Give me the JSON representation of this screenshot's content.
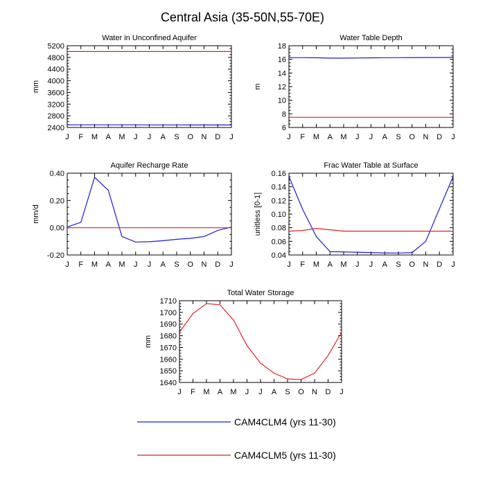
{
  "title": "Central Asia (35-50N,55-70E)",
  "colors": {
    "blue": "#1a1ad6",
    "red": "#e02020"
  },
  "legend": {
    "entries": [
      {
        "label": "CAM4CLM4 (yrs 11-30)",
        "color": "#1a1ad6"
      },
      {
        "label": "CAM4CLM5 (yrs 11-30)",
        "color": "#e02020"
      }
    ]
  },
  "chart_data": [
    {
      "type": "line",
      "title": "Water in Unconfined Aquifer",
      "ylabel": "mm",
      "ylim": [
        2400,
        5200
      ],
      "yticks": [
        2400,
        2800,
        3200,
        3600,
        4000,
        4400,
        4800,
        5200
      ],
      "ytick_labels": [
        "2400",
        "2800",
        "3200",
        "3600",
        "4000",
        "4400",
        "4800",
        "5200"
      ],
      "x": [
        "J",
        "F",
        "M",
        "A",
        "M",
        "J",
        "J",
        "A",
        "S",
        "O",
        "N",
        "D",
        "J"
      ],
      "series": [
        {
          "name": "CAM4CLM4 (yrs 11-30)",
          "color": "#1a1ad6",
          "values": [
            2490,
            2490,
            2490,
            2490,
            2490,
            2490,
            2488,
            2488,
            2488,
            2486,
            2486,
            2486,
            2486
          ]
        },
        {
          "name": "CAM4CLM5 (yrs 11-30)",
          "color": "#e02020",
          "values": [
            5000,
            5000,
            5000,
            5000,
            5000,
            5000,
            5000,
            5000,
            5000,
            5000,
            5000,
            5000,
            5000
          ]
        }
      ]
    },
    {
      "type": "line",
      "title": "Water Table Depth",
      "ylabel": "m",
      "ylim": [
        6,
        18
      ],
      "yticks": [
        6,
        8,
        10,
        12,
        14,
        16,
        18
      ],
      "ytick_labels": [
        "6",
        "8",
        "10",
        "12",
        "14",
        "16",
        "18"
      ],
      "x": [
        "J",
        "F",
        "M",
        "A",
        "M",
        "J",
        "J",
        "A",
        "S",
        "O",
        "N",
        "D",
        "J"
      ],
      "series": [
        {
          "name": "CAM4CLM4 (yrs 11-30)",
          "color": "#1a1ad6",
          "values": [
            16.25,
            16.25,
            16.23,
            16.18,
            16.18,
            16.2,
            16.22,
            16.24,
            16.25,
            16.26,
            16.27,
            16.27,
            16.28
          ]
        },
        {
          "name": "CAM4CLM5 (yrs 11-30)",
          "color": "#e02020",
          "values": [
            7.5,
            7.5,
            7.5,
            7.5,
            7.5,
            7.5,
            7.5,
            7.5,
            7.5,
            7.5,
            7.5,
            7.5,
            7.5
          ]
        }
      ]
    },
    {
      "type": "line",
      "title": "Aquifer Recharge Rate",
      "ylabel": "mm/d",
      "ylim": [
        -0.2,
        0.4
      ],
      "yticks": [
        -0.2,
        0.0,
        0.2,
        0.4
      ],
      "ytick_labels": [
        "-0.20",
        "0.00",
        "0.20",
        "0.40"
      ],
      "x": [
        "J",
        "F",
        "M",
        "A",
        "M",
        "J",
        "J",
        "A",
        "S",
        "O",
        "N",
        "D",
        "J"
      ],
      "series": [
        {
          "name": "CAM4CLM4 (yrs 11-30)",
          "color": "#1a1ad6",
          "values": [
            0.005,
            0.04,
            0.37,
            0.275,
            -0.065,
            -0.105,
            -0.103,
            -0.095,
            -0.085,
            -0.078,
            -0.065,
            -0.02,
            0.005
          ]
        },
        {
          "name": "CAM4CLM5 (yrs 11-30)",
          "color": "#e02020",
          "values": [
            0,
            0,
            0,
            0,
            0,
            0,
            0,
            0,
            0,
            0,
            0,
            0,
            0
          ]
        }
      ]
    },
    {
      "type": "line",
      "title": "Frac Water Table at Surface",
      "ylabel": "unitless [0-1]",
      "ylim": [
        0.04,
        0.16
      ],
      "yticks": [
        0.04,
        0.06,
        0.08,
        0.1,
        0.12,
        0.14,
        0.16
      ],
      "ytick_labels": [
        "0.04",
        "0.06",
        "0.08",
        "0.10",
        "0.12",
        "0.14",
        "0.16"
      ],
      "x": [
        "J",
        "F",
        "M",
        "A",
        "M",
        "J",
        "J",
        "A",
        "S",
        "O",
        "N",
        "D",
        "J"
      ],
      "series": [
        {
          "name": "CAM4CLM4 (yrs 11-30)",
          "color": "#1a1ad6",
          "values": [
            0.155,
            0.107,
            0.067,
            0.045,
            0.0445,
            0.044,
            0.0435,
            0.043,
            0.0428,
            0.0435,
            0.06,
            0.108,
            0.155
          ]
        },
        {
          "name": "CAM4CLM5 (yrs 11-30)",
          "color": "#e02020",
          "values": [
            0.075,
            0.076,
            0.079,
            0.077,
            0.075,
            0.075,
            0.075,
            0.075,
            0.075,
            0.075,
            0.075,
            0.075,
            0.075
          ]
        }
      ]
    },
    {
      "type": "line",
      "title": "Total Water Storage",
      "ylabel": "mm",
      "ylim": [
        1640,
        1710
      ],
      "yticks": [
        1640,
        1650,
        1660,
        1670,
        1680,
        1690,
        1700,
        1710
      ],
      "ytick_labels": [
        "1640",
        "1650",
        "1660",
        "1670",
        "1680",
        "1690",
        "1700",
        "1710"
      ],
      "x": [
        "J",
        "F",
        "M",
        "A",
        "M",
        "J",
        "J",
        "A",
        "S",
        "O",
        "N",
        "D",
        "J"
      ],
      "series": [
        {
          "name": "CAM4CLM5 (yrs 11-30)",
          "color": "#e02020",
          "values": [
            1683,
            1699,
            1707.5,
            1706.5,
            1693.5,
            1671.5,
            1656.5,
            1648,
            1643,
            1642.5,
            1648,
            1663,
            1683
          ]
        }
      ]
    }
  ]
}
